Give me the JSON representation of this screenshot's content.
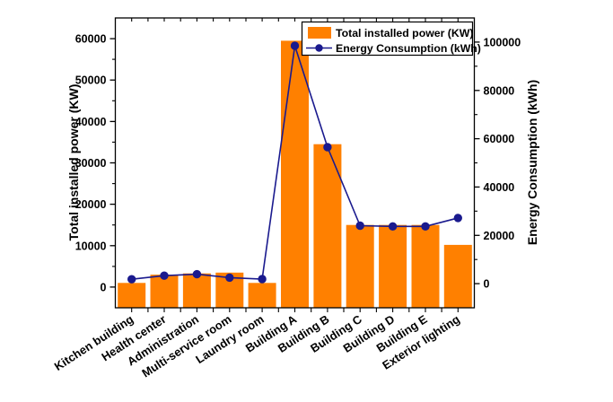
{
  "figure": {
    "background": "#ffffff",
    "frame_color": "#000000",
    "text_color": "#000000"
  },
  "chart_data": {
    "type": "combo",
    "categories": [
      "Kitchen building",
      "Health center",
      "Administration",
      "Multi-service room",
      "Laundry room",
      "Building A",
      "Building B",
      "Building C",
      "Building D",
      "Building E",
      "Exterior lighting"
    ],
    "series": [
      {
        "name": "Total installed power (KW)",
        "type": "bar",
        "axis": "left",
        "color": "#FF8000",
        "values": [
          1000,
          3000,
          3300,
          3500,
          1000,
          59500,
          34500,
          15000,
          15000,
          15000,
          10200
        ]
      },
      {
        "name": "Energy Consumption (kWh)",
        "type": "line",
        "axis": "right",
        "color": "#1A1A8E",
        "marker": "circle",
        "values": [
          1800,
          3300,
          3900,
          2500,
          1900,
          98500,
          56500,
          24000,
          23700,
          23700,
          27200
        ]
      }
    ],
    "title": "",
    "xlabel": "",
    "ylabel_left": "Total installed power (KW)",
    "ylabel_right": "Energy Consumption (kWh)",
    "left_axis": {
      "min": -5000,
      "max": 65000,
      "ticks": [
        0,
        10000,
        20000,
        30000,
        40000,
        50000,
        60000
      ],
      "minor_step": 5000
    },
    "right_axis": {
      "min": -10000,
      "max": 110000,
      "ticks": [
        0,
        20000,
        40000,
        60000,
        80000,
        100000
      ],
      "minor_step": 10000
    },
    "legend": {
      "position": "top-right",
      "entries": [
        "Total installed power (KW)",
        "Energy Consumption (kWh)"
      ]
    },
    "grid": false,
    "x_label_rotation_deg": -33
  }
}
